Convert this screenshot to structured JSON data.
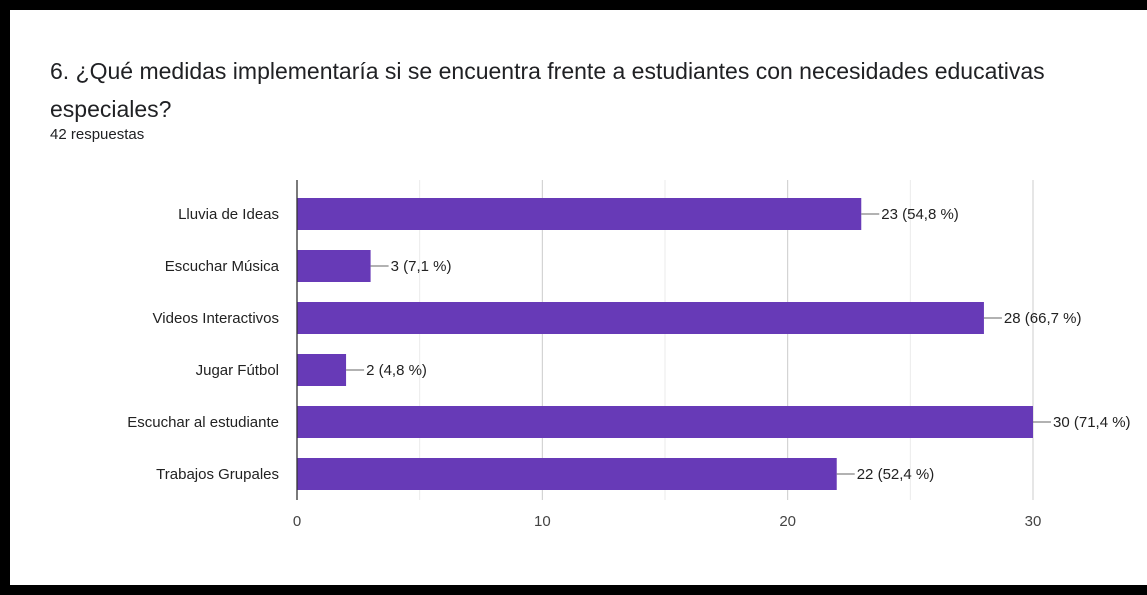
{
  "question": {
    "title": "6. ¿Qué medidas implementaría si se encuentra frente a estudiantes con necesidades educativas especiales?",
    "responses": "42 respuestas"
  },
  "chart_data": {
    "type": "bar",
    "orientation": "horizontal",
    "categories": [
      "Lluvia de Ideas",
      "Escuchar Música",
      "Videos Interactivos",
      "Jugar Fútbol",
      "Escuchar al estudiante",
      "Trabajos Grupales"
    ],
    "values": [
      23,
      3,
      28,
      2,
      30,
      22
    ],
    "data_labels": [
      "23 (54,8 %)",
      "3 (7,1 %)",
      "28 (66,7 %)",
      "2 (4,8 %)",
      "30 (71,4 %)",
      "22 (52,4 %)"
    ],
    "xticks": [
      0,
      10,
      20,
      30
    ],
    "xlim": [
      0,
      30
    ],
    "grid": true,
    "bar_color": "#673ab7"
  }
}
